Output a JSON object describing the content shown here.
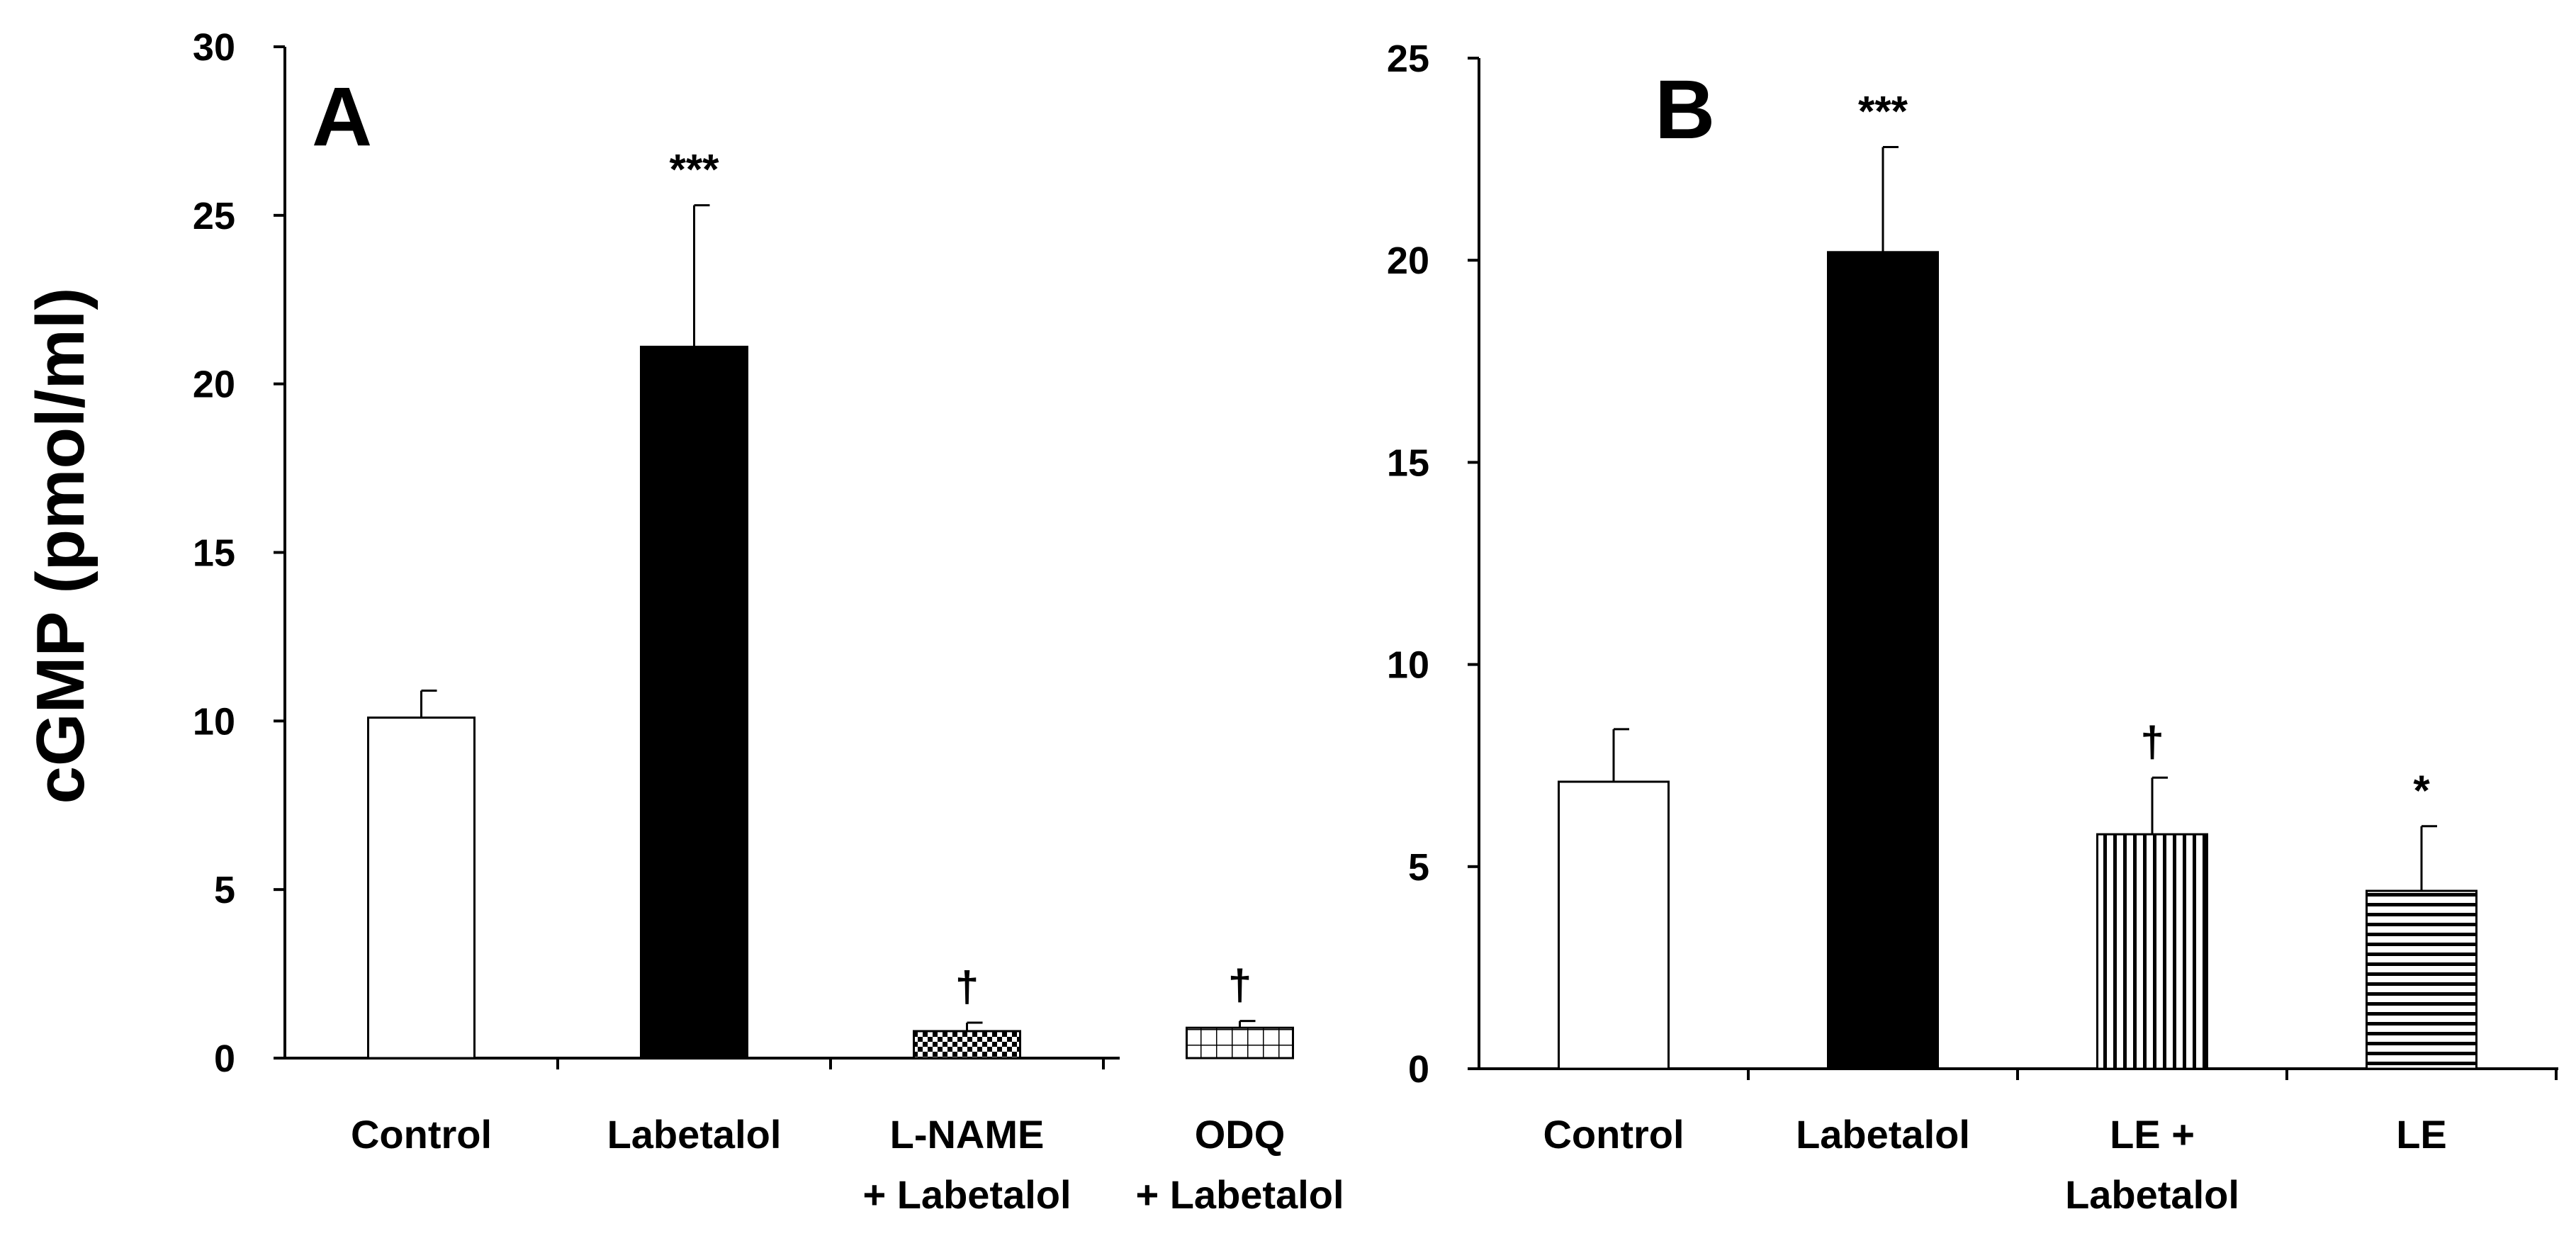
{
  "ylabel": "cGMP (pmol/ml)",
  "colors": {
    "ink": "#000000",
    "background": "#ffffff"
  },
  "chart_data": [
    {
      "type": "bar",
      "panel_label": "A",
      "ylabel": "cGMP (pmol/ml)",
      "ylim": [
        0,
        30
      ],
      "yticks": [
        "0",
        "5",
        "10",
        "15",
        "20",
        "25",
        "30"
      ],
      "categories": [
        {
          "line1": "Control",
          "line2": ""
        },
        {
          "line1": "Labetalol",
          "line2": ""
        },
        {
          "line1": "L-NAME",
          "line2": "+ Labetalol"
        },
        {
          "line1": "ODQ",
          "line2": "+ Labetalol"
        }
      ],
      "values": [
        10.1,
        21.1,
        0.8,
        0.9
      ],
      "errors": [
        0.8,
        4.2,
        0.25,
        0.2
      ],
      "patterns": [
        "white",
        "black",
        "checker",
        "grid"
      ],
      "annotations": [
        "",
        "***",
        "†",
        "†"
      ]
    },
    {
      "type": "bar",
      "panel_label": "B",
      "ylim": [
        0,
        25
      ],
      "yticks": [
        "0",
        "5",
        "10",
        "15",
        "20",
        "25"
      ],
      "categories": [
        {
          "line1": "Control",
          "line2": ""
        },
        {
          "line1": "Labetalol",
          "line2": ""
        },
        {
          "line1": "LE +",
          "line2": "Labetalol"
        },
        {
          "line1": "LE",
          "line2": ""
        }
      ],
      "values": [
        7.1,
        20.2,
        5.8,
        4.4
      ],
      "errors": [
        1.3,
        2.6,
        1.4,
        1.6
      ],
      "patterns": [
        "white",
        "black",
        "vstripe",
        "hstripe"
      ],
      "annotations": [
        "",
        "***",
        "†",
        "*"
      ]
    }
  ]
}
